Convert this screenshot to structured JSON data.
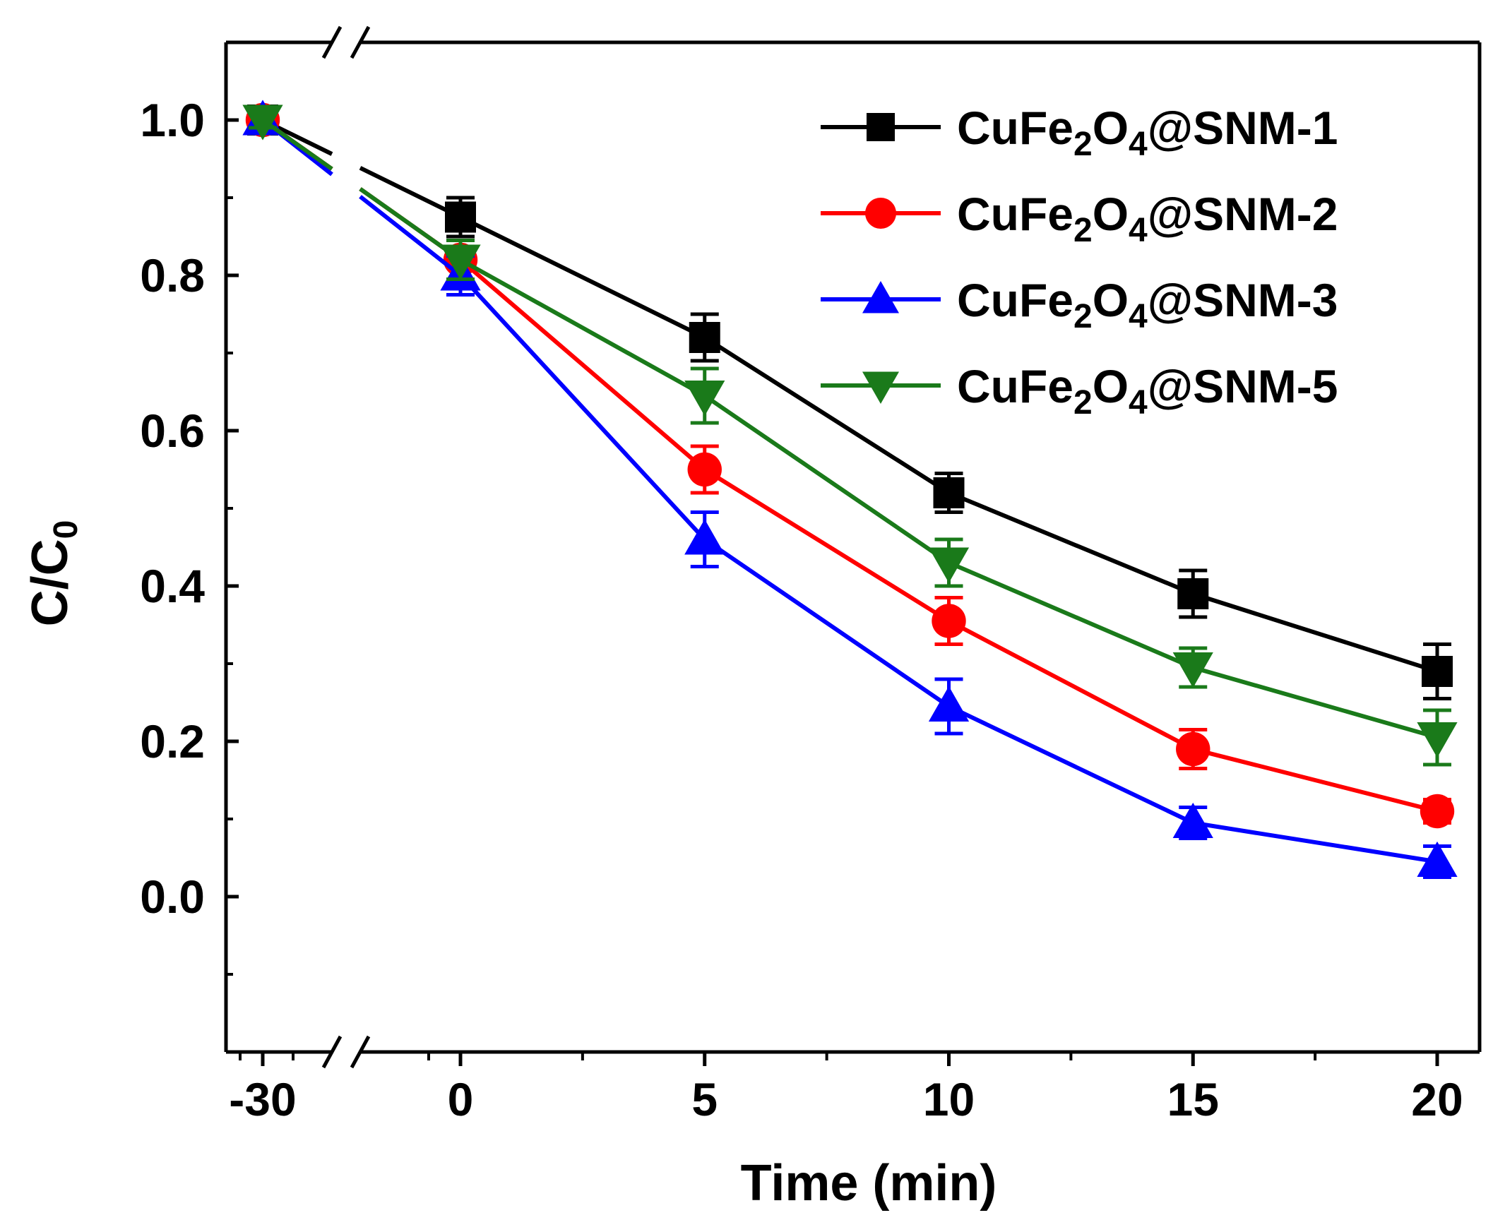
{
  "chart_data": {
    "type": "line",
    "xlabel": "Time (min)",
    "ylabel": {
      "main": "C/C",
      "sub": "0"
    },
    "x_tick_labels": [
      "-30",
      "0",
      "5",
      "10",
      "15",
      "20"
    ],
    "y_tick_labels": [
      "0.0",
      "0.2",
      "0.4",
      "0.6",
      "0.8",
      "1.0"
    ],
    "x": [
      -30,
      0,
      5,
      10,
      15,
      20
    ],
    "ylim": [
      -0.2,
      1.1
    ],
    "axis_break": "between -30 and 0",
    "legend_position": "top-right",
    "grid": false,
    "series": [
      {
        "name": {
          "pre": "CuFe",
          "s1": "2",
          "mid": "O",
          "s2": "4",
          "post": "@SNM-1"
        },
        "color": "#000000",
        "marker": "square",
        "values": [
          1.0,
          0.875,
          0.72,
          0.52,
          0.39,
          0.29
        ],
        "errors": [
          0.01,
          0.025,
          0.03,
          0.025,
          0.03,
          0.035
        ]
      },
      {
        "name": {
          "pre": "CuFe",
          "s1": "2",
          "mid": "O",
          "s2": "4",
          "post": "@SNM-2"
        },
        "color": "#ff0000",
        "marker": "circle",
        "values": [
          1.0,
          0.82,
          0.55,
          0.355,
          0.19,
          0.11
        ],
        "errors": [
          0.01,
          0.025,
          0.03,
          0.03,
          0.025,
          0.015
        ]
      },
      {
        "name": {
          "pre": "CuFe",
          "s1": "2",
          "mid": "O",
          "s2": "4",
          "post": "@SNM-3"
        },
        "color": "#0000ff",
        "marker": "triangle-up",
        "values": [
          1.0,
          0.8,
          0.46,
          0.245,
          0.095,
          0.045
        ],
        "errors": [
          0.01,
          0.025,
          0.035,
          0.035,
          0.02,
          0.02
        ]
      },
      {
        "name": {
          "pre": "CuFe",
          "s1": "2",
          "mid": "O",
          "s2": "4",
          "post": "@SNM-5"
        },
        "color": "#1a7a1a",
        "marker": "triangle-down",
        "values": [
          1.0,
          0.82,
          0.645,
          0.43,
          0.295,
          0.205
        ],
        "errors": [
          0.01,
          0.025,
          0.035,
          0.03,
          0.025,
          0.035
        ]
      }
    ]
  }
}
